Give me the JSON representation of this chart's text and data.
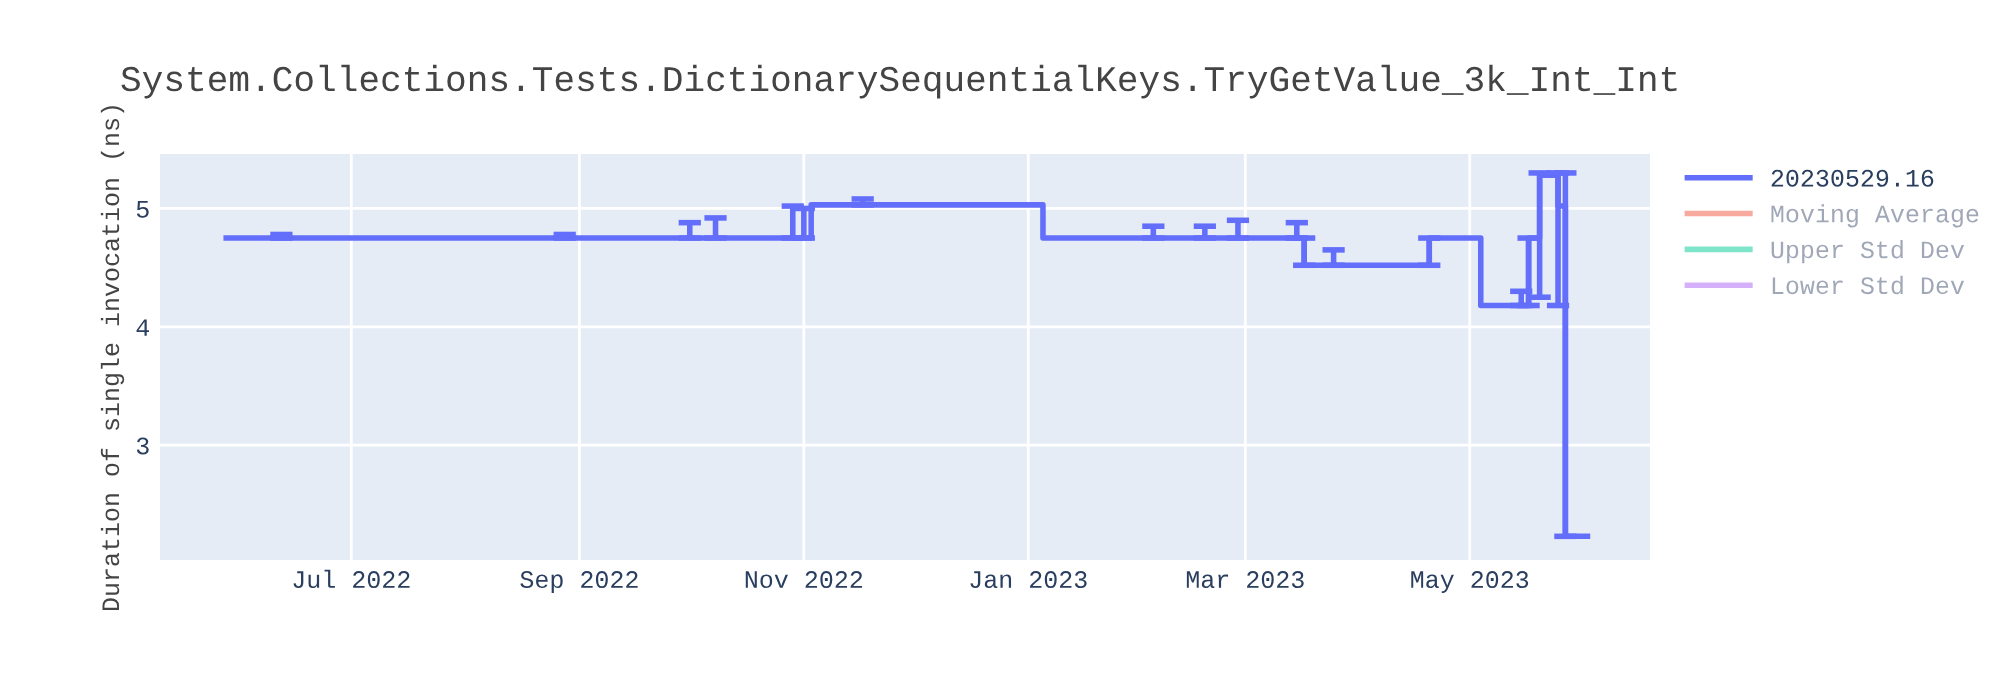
{
  "chart_data": {
    "type": "step",
    "title": "System.Collections.Tests.DictionarySequentialKeys.TryGetValue_3k_Int_Int",
    "ylabel": "Duration of single invocation (ns)",
    "x": [
      "2022-05-28",
      "2022-06-12",
      "2022-07-15",
      "2022-08-28",
      "2022-10-01",
      "2022-10-08",
      "2022-10-29",
      "2022-11-01",
      "2022-11-03",
      "2022-11-17",
      "2023-01-05",
      "2023-02-04",
      "2023-02-18",
      "2023-02-27",
      "2023-03-15",
      "2023-03-17",
      "2023-03-25",
      "2023-04-17",
      "2023-04-20",
      "2023-05-04",
      "2023-05-15",
      "2023-05-17",
      "2023-05-20",
      "2023-05-25",
      "2023-05-27",
      "2023-06-02"
    ],
    "series": [
      {
        "name": "20230529.16",
        "color": "#636efa",
        "values": [
          4.75,
          4.75,
          4.75,
          4.75,
          4.75,
          4.75,
          4.75,
          4.75,
          5.03,
          5.03,
          4.75,
          4.75,
          4.75,
          4.75,
          4.75,
          4.52,
          4.52,
          4.52,
          4.75,
          4.18,
          4.18,
          4.75,
          5.28,
          5.02,
          2.23,
          2.23
        ],
        "errors": [
          null,
          [
            4.75,
            4.78
          ],
          null,
          [
            4.75,
            4.78
          ],
          [
            4.75,
            4.88
          ],
          [
            4.75,
            4.92
          ],
          [
            4.75,
            5.02
          ],
          [
            4.75,
            5.0
          ],
          null,
          [
            5.03,
            5.08
          ],
          null,
          [
            4.75,
            4.85
          ],
          [
            4.75,
            4.85
          ],
          [
            4.75,
            4.9
          ],
          [
            4.75,
            4.88
          ],
          [
            4.52,
            4.75
          ],
          [
            4.52,
            4.65
          ],
          null,
          [
            4.52,
            4.75
          ],
          null,
          [
            4.18,
            4.3
          ],
          [
            4.18,
            4.75
          ],
          [
            4.25,
            5.3
          ],
          [
            4.18,
            5.3
          ],
          [
            2.23,
            5.3
          ],
          null
        ]
      },
      {
        "name": "Moving Average",
        "color": "#ef553b",
        "values": [
          null,
          null,
          null,
          null,
          null,
          null,
          null,
          null,
          null,
          null,
          null,
          null,
          null,
          null,
          null,
          null,
          null,
          null,
          null,
          null,
          null,
          null,
          null,
          null,
          null,
          null
        ]
      },
      {
        "name": "Upper Std Dev",
        "color": "#00cc96",
        "values": [
          null,
          null,
          null,
          null,
          null,
          null,
          null,
          null,
          null,
          null,
          null,
          null,
          null,
          null,
          null,
          null,
          null,
          null,
          null,
          null,
          null,
          null,
          null,
          null,
          null,
          null
        ]
      },
      {
        "name": "Lower Std Dev",
        "color": "#ab63fa",
        "values": [
          null,
          null,
          null,
          null,
          null,
          null,
          null,
          null,
          null,
          null,
          null,
          null,
          null,
          null,
          null,
          null,
          null,
          null,
          null,
          null,
          null,
          null,
          null,
          null,
          null,
          null
        ]
      }
    ],
    "xlim": [
      "2022-05-10",
      "2023-06-19"
    ],
    "xticks": [
      {
        "value": "2022-07-01",
        "label": "Jul 2022"
      },
      {
        "value": "2022-09-01",
        "label": "Sep 2022"
      },
      {
        "value": "2022-11-01",
        "label": "Nov 2022"
      },
      {
        "value": "2023-01-01",
        "label": "Jan 2023"
      },
      {
        "value": "2023-03-01",
        "label": "Mar 2023"
      },
      {
        "value": "2023-05-01",
        "label": "May 2023"
      }
    ],
    "ylim": [
      2.03,
      5.46
    ],
    "yticks": [
      3,
      4,
      5
    ],
    "grid": true,
    "legend": "top right"
  }
}
